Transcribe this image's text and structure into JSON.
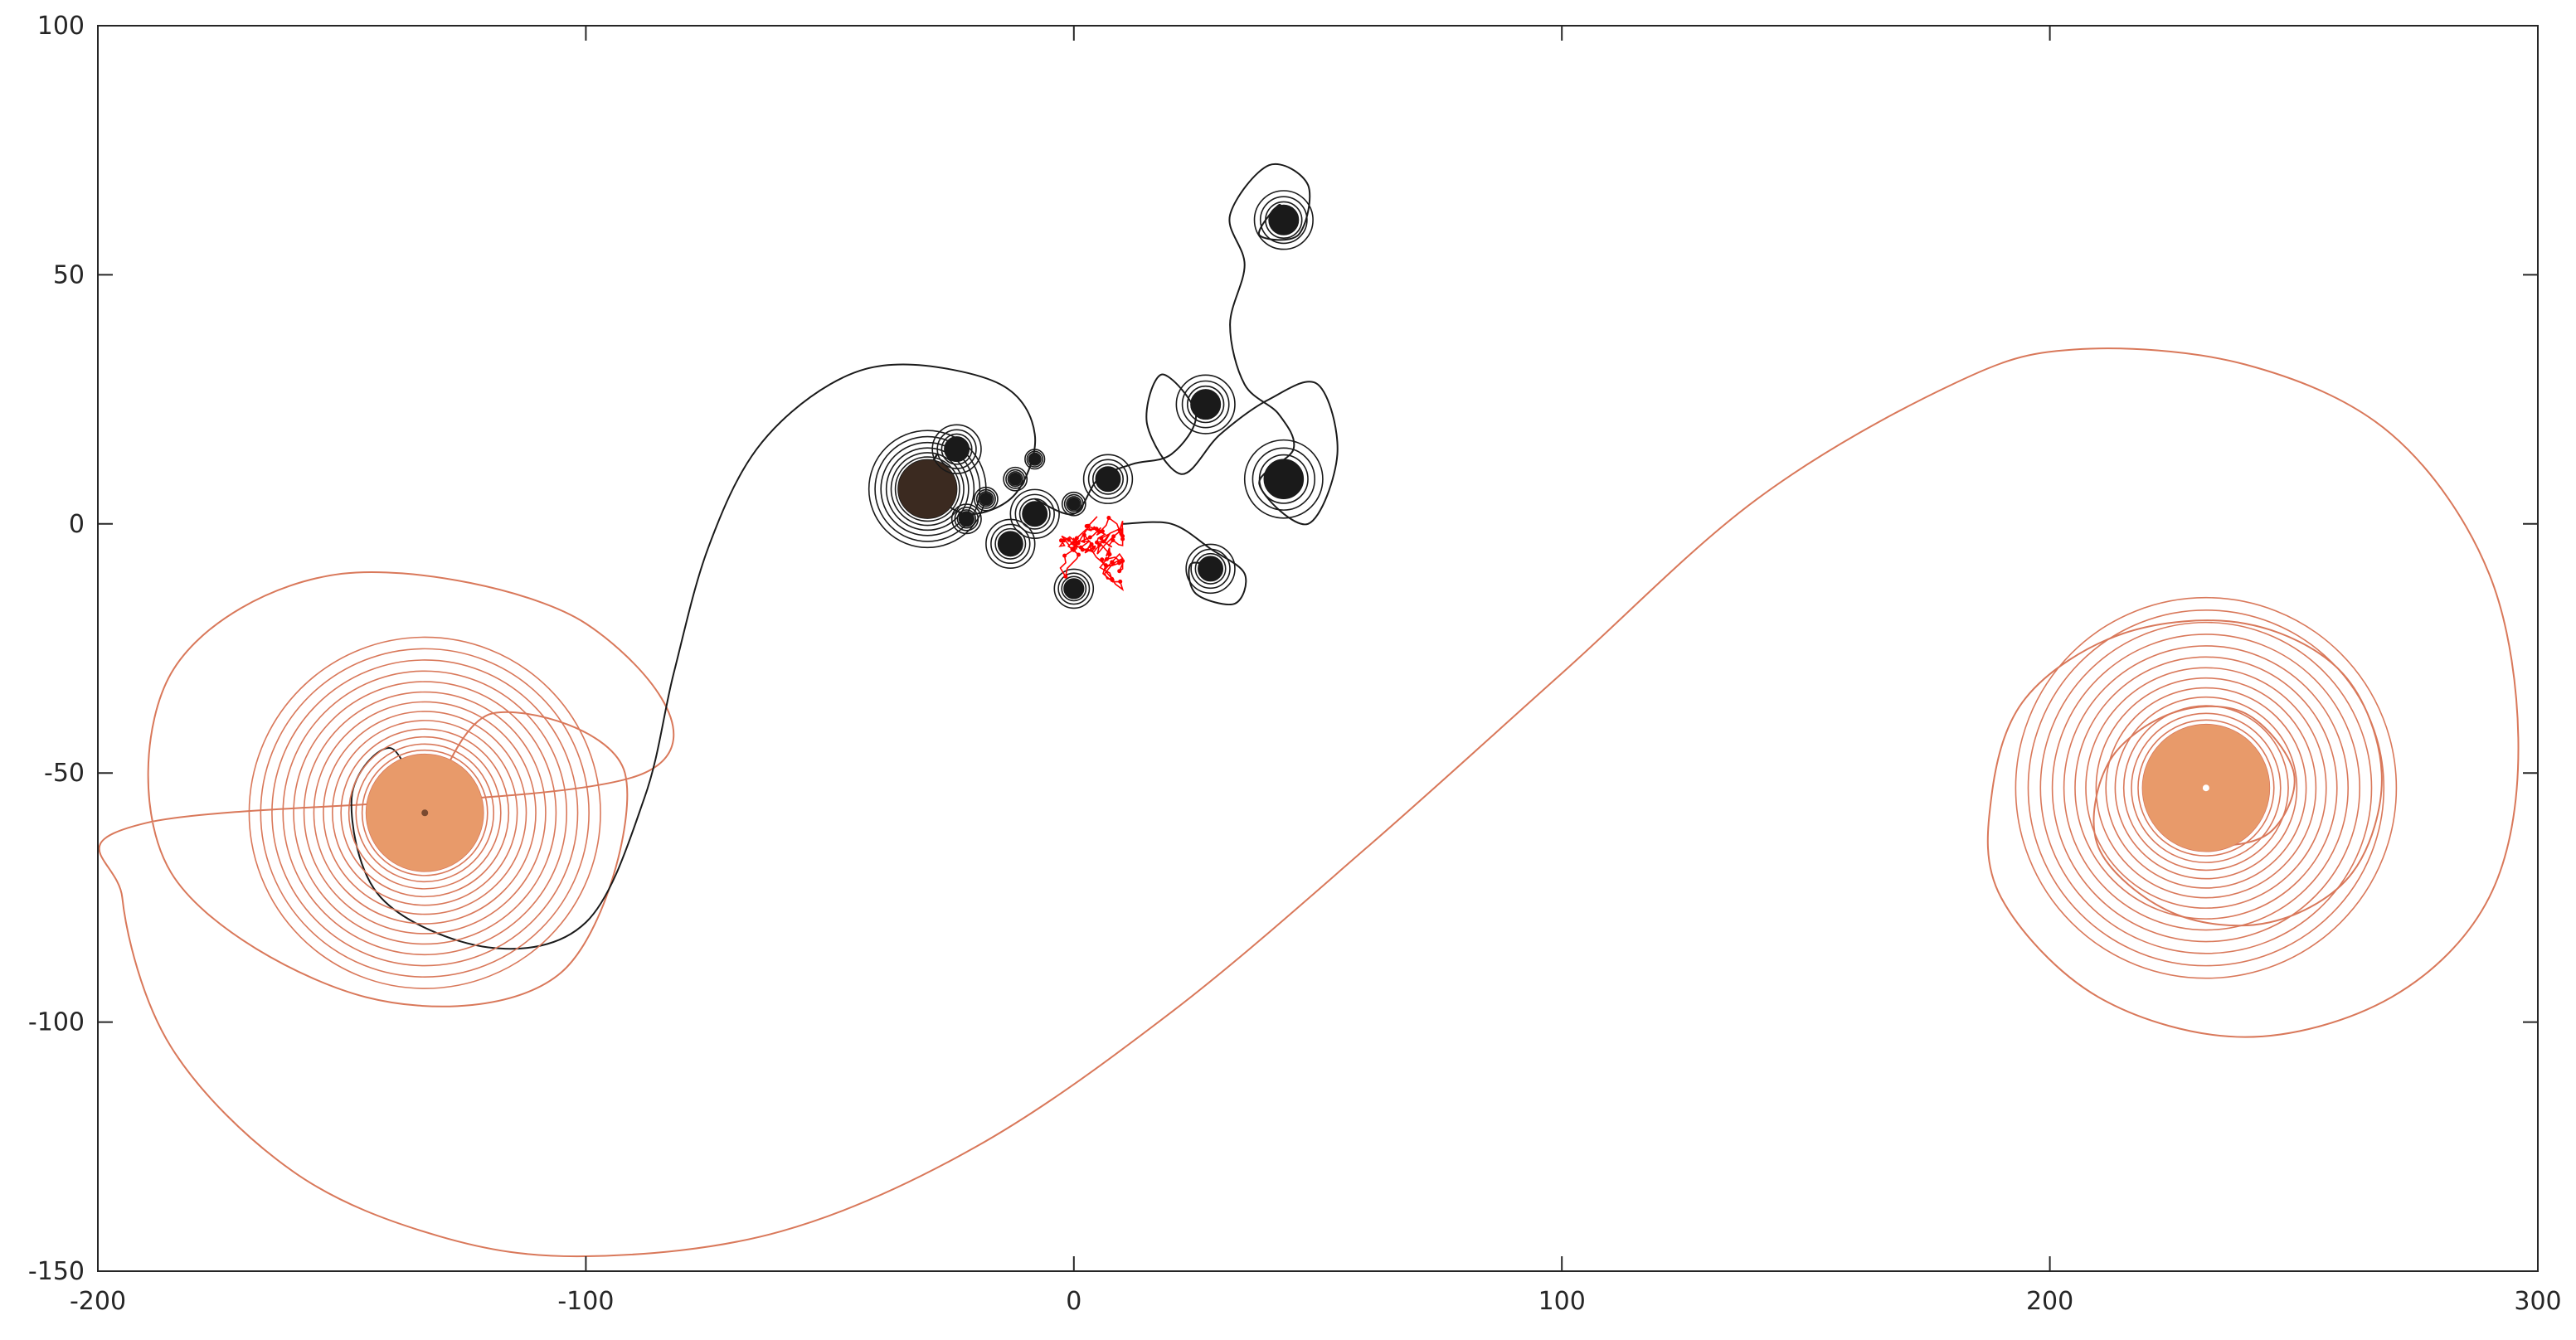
{
  "chart_data": {
    "type": "line",
    "title": "",
    "xlabel": "",
    "ylabel": "",
    "xlim": [
      -200,
      300
    ],
    "ylim": [
      -150,
      100
    ],
    "xticks": [
      -200,
      -100,
      0,
      100,
      200,
      300
    ],
    "yticks": [
      -150,
      -100,
      -50,
      0,
      50,
      100
    ],
    "xtick_labels": [
      "-200",
      "-100",
      "0",
      "100",
      "200",
      "300"
    ],
    "ytick_labels": [
      "-150",
      "-100",
      "-50",
      "0",
      "50",
      "100"
    ],
    "grid": false,
    "box": true,
    "colors": {
      "orange_curve": "#d9785a",
      "orange_core": "#e89a6a",
      "black_curve": "#1a1a1a",
      "dark_core": "#3b2a20",
      "red_cluster": "#ff0000",
      "axis": "#262626"
    },
    "series": [
      {
        "style": "orange-spiral-filament",
        "points": [
          [
            -133,
            -58
          ],
          [
            -119,
            -38
          ],
          [
            -92,
            -50
          ],
          [
            -105,
            -90
          ],
          [
            -145,
            -95
          ],
          [
            -185,
            -70
          ],
          [
            -185,
            -30
          ],
          [
            -150,
            -10
          ],
          [
            -100,
            -20
          ],
          [
            -88,
            -50
          ],
          [
            -190,
            -60
          ],
          [
            -195,
            -75
          ],
          [
            -185,
            -105
          ],
          [
            -160,
            -130
          ],
          [
            -130,
            -143
          ],
          [
            -100,
            -147
          ],
          [
            -60,
            -142
          ],
          [
            -20,
            -125
          ],
          [
            20,
            -98
          ],
          [
            60,
            -65
          ],
          [
            100,
            -30
          ],
          [
            140,
            5
          ],
          [
            180,
            28
          ],
          [
            205,
            35
          ],
          [
            240,
            32
          ],
          [
            270,
            18
          ],
          [
            290,
            -10
          ],
          [
            296,
            -45
          ],
          [
            290,
            -75
          ],
          [
            270,
            -95
          ],
          [
            240,
            -103
          ],
          [
            210,
            -95
          ],
          [
            190,
            -75
          ],
          [
            188,
            -55
          ],
          [
            195,
            -35
          ],
          [
            215,
            -22
          ],
          [
            240,
            -20
          ],
          [
            260,
            -30
          ],
          [
            268,
            -50
          ],
          [
            262,
            -70
          ],
          [
            245,
            -80
          ],
          [
            225,
            -78
          ],
          [
            210,
            -65
          ],
          [
            212,
            -48
          ],
          [
            225,
            -38
          ],
          [
            240,
            -38
          ],
          [
            250,
            -50
          ],
          [
            245,
            -62
          ],
          [
            232,
            -64
          ],
          [
            225,
            -55
          ],
          [
            232,
            -48
          ],
          [
            236,
            -53
          ]
        ]
      },
      {
        "style": "black-filament",
        "points": [
          [
            -133,
            -58
          ],
          [
            -140,
            -45
          ],
          [
            -148,
            -55
          ],
          [
            -142,
            -75
          ],
          [
            -120,
            -85
          ],
          [
            -100,
            -80
          ],
          [
            -88,
            -55
          ],
          [
            -82,
            -30
          ],
          [
            -75,
            -5
          ],
          [
            -65,
            15
          ],
          [
            -50,
            28
          ],
          [
            -35,
            32
          ],
          [
            -15,
            28
          ],
          [
            -8,
            18
          ],
          [
            -12,
            6
          ],
          [
            -22,
            2
          ],
          [
            -30,
            8
          ],
          [
            -28,
            14
          ],
          [
            -32,
            7
          ]
        ]
      },
      {
        "style": "black-filament",
        "points": [
          [
            -8,
            5
          ],
          [
            0,
            2
          ],
          [
            5,
            9
          ],
          [
            12,
            12
          ],
          [
            20,
            14
          ],
          [
            25,
            22
          ],
          [
            18,
            30
          ],
          [
            15,
            20
          ],
          [
            22,
            10
          ],
          [
            30,
            18
          ],
          [
            40,
            25
          ],
          [
            50,
            28
          ],
          [
            54,
            14
          ],
          [
            48,
            0
          ],
          [
            38,
            8
          ],
          [
            45,
            15
          ],
          [
            42,
            22
          ],
          [
            35,
            28
          ],
          [
            32,
            40
          ],
          [
            35,
            52
          ],
          [
            32,
            62
          ],
          [
            40,
            72
          ],
          [
            48,
            68
          ],
          [
            46,
            58
          ],
          [
            38,
            58
          ],
          [
            42,
            64
          ],
          [
            43,
            61
          ]
        ]
      },
      {
        "style": "black-filament",
        "points": [
          [
            10,
            0
          ],
          [
            20,
            0
          ],
          [
            28,
            -5
          ],
          [
            35,
            -10
          ],
          [
            33,
            -16
          ],
          [
            25,
            -14
          ],
          [
            24,
            -8
          ],
          [
            30,
            -9
          ],
          [
            27,
            -9
          ]
        ]
      }
    ],
    "vortex_cores": [
      {
        "x": -133,
        "y": -58,
        "r": 12,
        "color": "orange"
      },
      {
        "x": 232,
        "y": -53,
        "r": 13,
        "color": "orange"
      },
      {
        "x": -30,
        "y": 7,
        "r": 6,
        "color": "dark"
      },
      {
        "x": 43,
        "y": 61,
        "r": 3,
        "color": "black"
      },
      {
        "x": 27,
        "y": 24,
        "r": 3,
        "color": "black"
      },
      {
        "x": 43,
        "y": 9,
        "r": 4,
        "color": "black"
      },
      {
        "x": 28,
        "y": -9,
        "r": 2.5,
        "color": "black"
      },
      {
        "x": 7,
        "y": 9,
        "r": 2.5,
        "color": "black"
      },
      {
        "x": -24,
        "y": 15,
        "r": 2.5,
        "color": "black"
      },
      {
        "x": -13,
        "y": -4,
        "r": 2.5,
        "color": "black"
      },
      {
        "x": -8,
        "y": 2,
        "r": 2.5,
        "color": "black"
      },
      {
        "x": -22,
        "y": 1,
        "r": 1.5,
        "color": "black"
      },
      {
        "x": -18,
        "y": 5,
        "r": 1.2,
        "color": "black"
      },
      {
        "x": -12,
        "y": 9,
        "r": 1.2,
        "color": "black"
      },
      {
        "x": -8,
        "y": 13,
        "r": 1.0,
        "color": "black"
      },
      {
        "x": 0,
        "y": -13,
        "r": 2,
        "color": "black"
      },
      {
        "x": 0,
        "y": 4,
        "r": 1.2,
        "color": "black"
      }
    ],
    "red_cluster": {
      "center": [
        0,
        -5
      ],
      "spread": [
        10,
        9
      ],
      "count": 140
    }
  }
}
